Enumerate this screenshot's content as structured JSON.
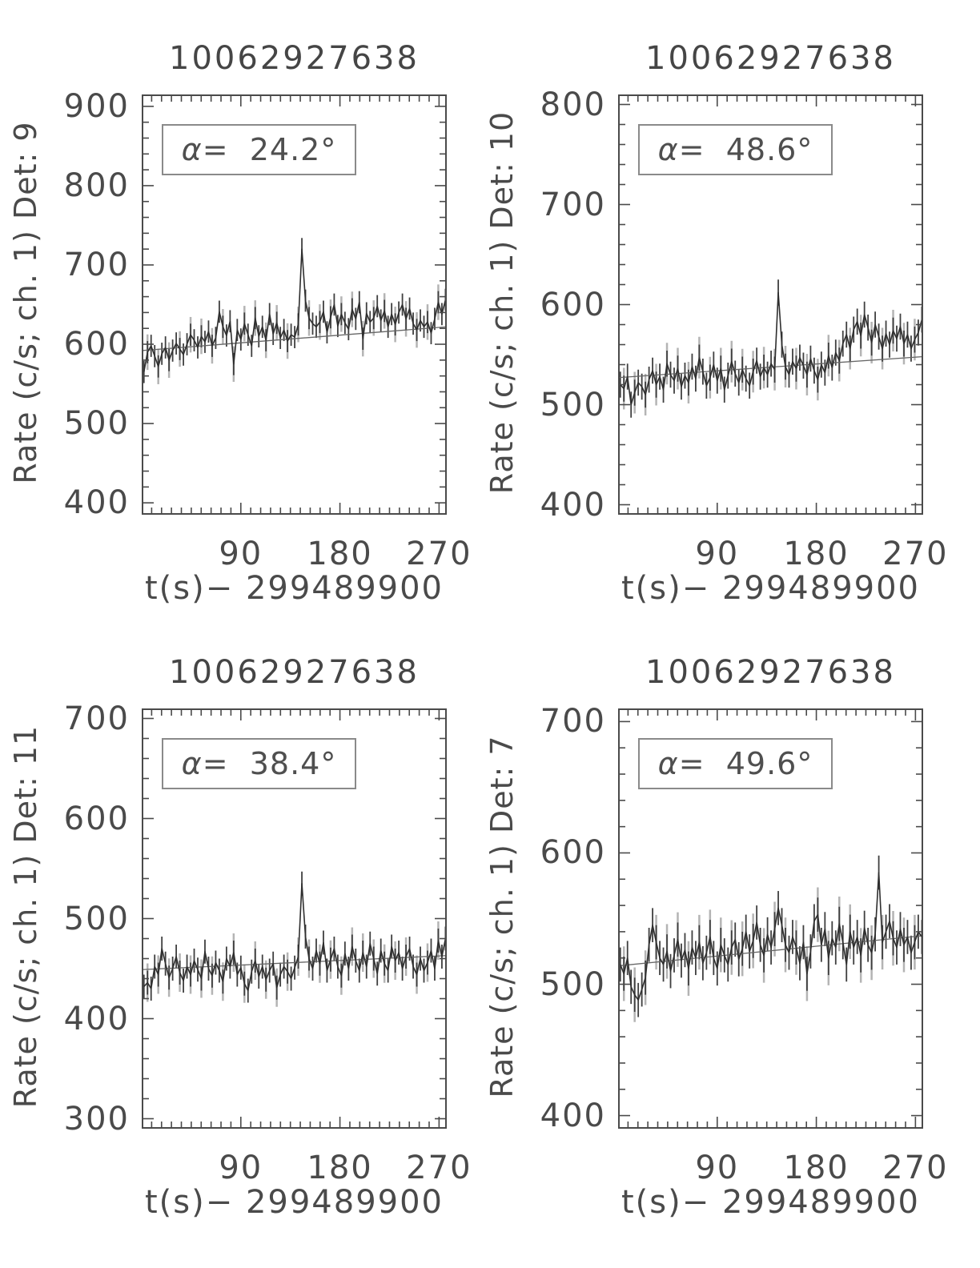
{
  "page": {
    "background": "#ffffff",
    "text_color": "#4a4a4a",
    "curve_color": "#2e2e2e",
    "errorbar_color": "#3f3f3f",
    "errorbar_gray": "#b4b4b4",
    "trend_color": "#666666",
    "frame_color": "#4a4a4a"
  },
  "chart_data": [
    {
      "type": "line",
      "title": "10062927638",
      "ylabel": "Rate (c/s; ch. 1) Det: 9",
      "xlabel": "t(s)− 299489900",
      "annotation": "α=  24.2°",
      "alpha_deg": 24.2,
      "detector": 9,
      "xlim": [
        0,
        277
      ],
      "ylim": [
        385,
        915
      ],
      "xticks": [
        90,
        180,
        270
      ],
      "yticks": [
        400,
        500,
        600,
        700,
        800,
        900
      ],
      "x_minor_step": 9,
      "y_minor_step": 20,
      "sigma": 14,
      "trend": {
        "start": 592,
        "end": 622
      },
      "t_start": 2,
      "t_step": 3.26,
      "rates": [
        565,
        590,
        598,
        585,
        572,
        588,
        596,
        580,
        592,
        601,
        594,
        587,
        600,
        612,
        605,
        596,
        610,
        603,
        616,
        598,
        608,
        641,
        622,
        611,
        629,
        575,
        618,
        606,
        626,
        612,
        598,
        633,
        610,
        622,
        605,
        638,
        613,
        627,
        608,
        618,
        604,
        612,
        609,
        625,
        720,
        655,
        633,
        626,
        622,
        628,
        641,
        615,
        634,
        650,
        623,
        638,
        627,
        619,
        644,
        632,
        653,
        607,
        639,
        628,
        633,
        648,
        630,
        642,
        622,
        638,
        625,
        640,
        650,
        632,
        645,
        626,
        618,
        630,
        622,
        628,
        614,
        632,
        653,
        638,
        656
      ]
    },
    {
      "type": "line",
      "title": "10062927638",
      "ylabel": "Rate (c/s; ch. 1) Det: 10",
      "xlabel": "t(s)− 299489900",
      "annotation": "α=  48.6°",
      "alpha_deg": 48.6,
      "detector": 10,
      "xlim": [
        0,
        277
      ],
      "ylim": [
        390,
        810
      ],
      "xticks": [
        90,
        180,
        270
      ],
      "yticks": [
        400,
        500,
        600,
        700,
        800
      ],
      "x_minor_step": 9,
      "y_minor_step": 20,
      "sigma": 13,
      "trend": {
        "start": 527,
        "end": 548
      },
      "t_start": 2,
      "t_step": 3.26,
      "rates": [
        520,
        516,
        528,
        500,
        512,
        522,
        518,
        510,
        525,
        534,
        520,
        528,
        515,
        541,
        530,
        524,
        536,
        518,
        529,
        522,
        538,
        526,
        547,
        533,
        519,
        527,
        540,
        524,
        536,
        515,
        529,
        543,
        531,
        522,
        535,
        526,
        519,
        533,
        544,
        528,
        537,
        530,
        541,
        535,
        612,
        560,
        538,
        530,
        543,
        536,
        547,
        539,
        530,
        546,
        534,
        525,
        540,
        532,
        549,
        537,
        552,
        544,
        561,
        570,
        556,
        575,
        583,
        569,
        590,
        577,
        562,
        580,
        568,
        556,
        571,
        560,
        574,
        566,
        578,
        561,
        570,
        556,
        565,
        572,
        585
      ]
    },
    {
      "type": "line",
      "title": "10062927638",
      "ylabel": "Rate (c/s; ch. 1) Det: 11",
      "xlabel": "t(s)− 299489900",
      "annotation": "α=  38.4°",
      "alpha_deg": 38.4,
      "detector": 11,
      "xlim": [
        0,
        277
      ],
      "ylim": [
        290,
        710
      ],
      "xticks": [
        90,
        180,
        270
      ],
      "yticks": [
        300,
        400,
        500,
        600,
        700
      ],
      "x_minor_step": 9,
      "y_minor_step": 20,
      "sigma": 12,
      "trend": {
        "start": 449,
        "end": 463
      },
      "t_start": 2,
      "t_step": 3.26,
      "rates": [
        432,
        436,
        430,
        452,
        444,
        470,
        455,
        441,
        450,
        462,
        446,
        438,
        452,
        444,
        458,
        449,
        440,
        467,
        450,
        443,
        456,
        448,
        437,
        460,
        452,
        466,
        444,
        451,
        435,
        428,
        447,
        458,
        442,
        452,
        439,
        448,
        455,
        431,
        444,
        452,
        447,
        440,
        451,
        462,
        535,
        482,
        460,
        450,
        468,
        455,
        476,
        448,
        459,
        470,
        452,
        443,
        465,
        450,
        472,
        458,
        448,
        466,
        452,
        475,
        460,
        445,
        468,
        455,
        448,
        472,
        458,
        466,
        450,
        462,
        470,
        452,
        444,
        460,
        448,
        456,
        468,
        450,
        478,
        462,
        480
      ]
    },
    {
      "type": "line",
      "title": "10062927638",
      "ylabel": "Rate (c/s; ch. 1) Det: 7",
      "xlabel": "t(s)− 299489900",
      "annotation": "α=  49.6°",
      "alpha_deg": 49.6,
      "detector": 7,
      "xlim": [
        0,
        277
      ],
      "ylim": [
        390,
        710
      ],
      "xticks": [
        90,
        180,
        270
      ],
      "yticks": [
        400,
        500,
        600,
        700
      ],
      "x_minor_step": 9,
      "y_minor_step": 20,
      "sigma": 13,
      "trend": {
        "start": 514,
        "end": 537
      },
      "t_start": 2,
      "t_step": 3.26,
      "rates": [
        515,
        508,
        520,
        498,
        492,
        488,
        496,
        505,
        530,
        545,
        532,
        520,
        515,
        525,
        510,
        522,
        534,
        518,
        526,
        512,
        528,
        520,
        532,
        516,
        524,
        536,
        520,
        512,
        530,
        522,
        515,
        528,
        534,
        519,
        527,
        540,
        525,
        533,
        547,
        530,
        522,
        538,
        528,
        542,
        558,
        545,
        530,
        524,
        536,
        528,
        516,
        532,
        508,
        525,
        548,
        553,
        530,
        542,
        520,
        535,
        528,
        546,
        532,
        515,
        540,
        528,
        536,
        522,
        543,
        530,
        524,
        538,
        585,
        532,
        540,
        548,
        535,
        528,
        542,
        530,
        536,
        524,
        532,
        540,
        536
      ]
    }
  ]
}
